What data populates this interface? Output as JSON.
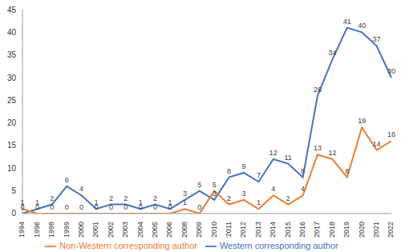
{
  "chart_data": {
    "type": "line",
    "categories": [
      "1994",
      "1996",
      "1998",
      "1999",
      "2000",
      "2001",
      "2002",
      "2003",
      "2004",
      "2005",
      "2006",
      "2008",
      "2009",
      "2010",
      "2011",
      "2012",
      "2013",
      "2014",
      "2015",
      "2016",
      "2017",
      "2018",
      "2019",
      "2020",
      "2021",
      "2022"
    ],
    "series": [
      {
        "name": "Western corresponding author",
        "color": "#4472c4",
        "values": [
          0,
          1,
          2,
          6,
          4,
          1,
          2,
          2,
          1,
          2,
          1,
          3,
          5,
          3,
          8,
          9,
          7,
          12,
          11,
          8,
          26,
          34,
          41,
          40,
          37,
          30
        ]
      },
      {
        "name": "Non-Western corresponding author",
        "color": "#ed7d31",
        "values": [
          1,
          0,
          0,
          0,
          0,
          0,
          0,
          0,
          0,
          0,
          0,
          1,
          0,
          5,
          2,
          3,
          1,
          4,
          2,
          4,
          13,
          12,
          8,
          19,
          14,
          16
        ]
      }
    ],
    "ylim": [
      0,
      45
    ],
    "yticks": [
      0,
      5,
      10,
      15,
      20,
      25,
      30,
      35,
      40,
      45
    ],
    "grid": false,
    "legend": "bottom",
    "data_labels": true
  }
}
